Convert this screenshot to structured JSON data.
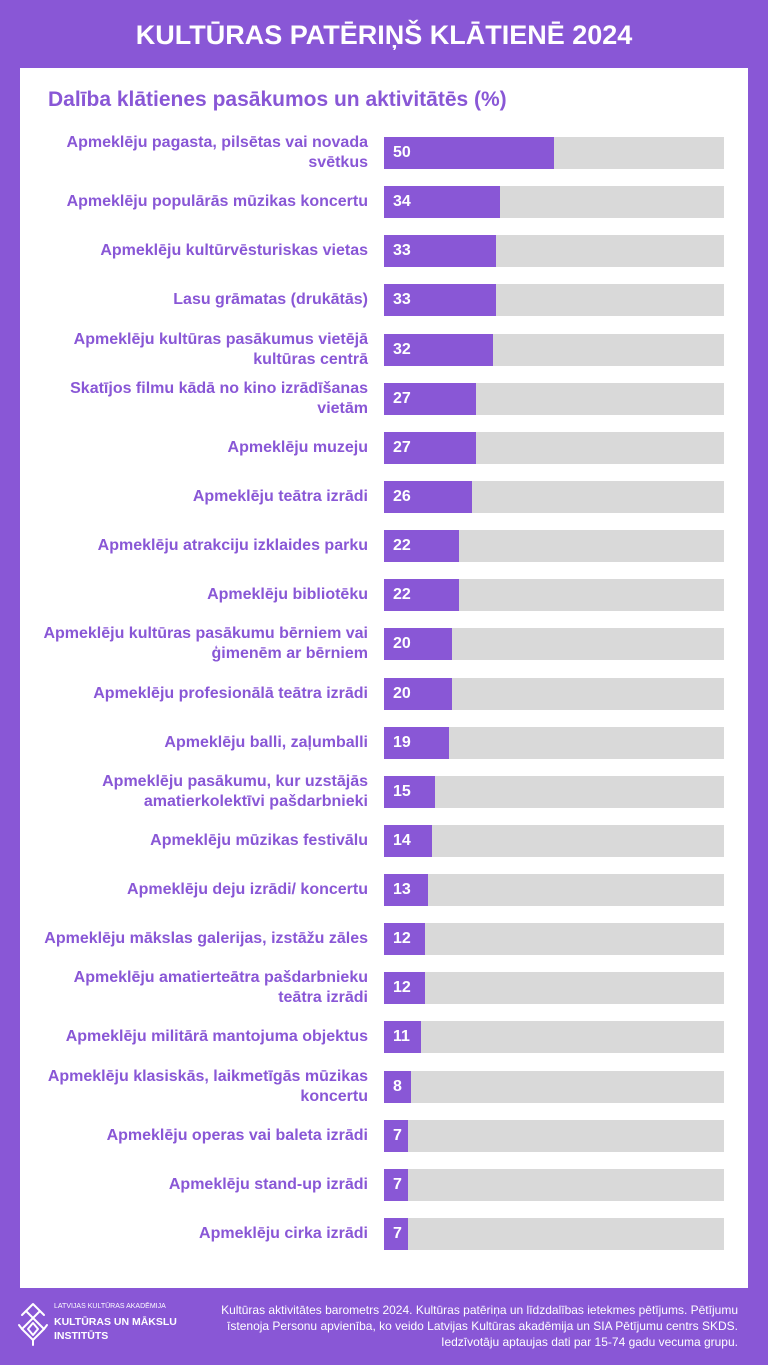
{
  "title": "KULTŪRAS PATĒRIŅŠ KLĀTIENĒ 2024",
  "colors": {
    "accent": "#8957d6",
    "track": "#d9d9d9",
    "panel": "#ffffff",
    "on_accent": "#ffffff"
  },
  "chart_data": {
    "type": "bar",
    "orientation": "horizontal",
    "title": "Dalība klātienes pasākumos un aktivitātēs (%)",
    "xlabel": "",
    "ylabel": "",
    "xlim": [
      0,
      100
    ],
    "grid": false,
    "categories": [
      "Apmeklēju pagasta, pilsētas vai novada svētkus",
      "Apmeklēju populārās mūzikas koncertu",
      "Apmeklēju kultūrvēsturiskas vietas",
      "Lasu grāmatas (drukātās)",
      "Apmeklēju kultūras pasākumus vietējā kultūras centrā",
      "Skatījos filmu kādā no kino izrādīšanas vietām",
      "Apmeklēju muzeju",
      "Apmeklēju teātra izrādi",
      "Apmeklēju atrakciju izklaides parku",
      "Apmeklēju bibliotēku",
      "Apmeklēju kultūras pasākumu bērniem vai ģimenēm ar bērniem",
      "Apmeklēju profesionālā teātra izrādi",
      "Apmeklēju balli, zaļumballi",
      "Apmeklēju pasākumu, kur uzstājās amatierkolektīvi pašdarbnieki",
      "Apmeklēju mūzikas festivālu",
      "Apmeklēju deju izrādi/ koncertu",
      "Apmeklēju mākslas galerijas, izstāžu zāles",
      "Apmeklēju amatierteātra pašdarbnieku teātra izrādi",
      "Apmeklēju militārā mantojuma objektus",
      "Apmeklēju klasiskās, laikmetīgās mūzikas koncertu",
      "Apmeklēju operas vai baleta izrādi",
      "Apmeklēju stand-up izrādi",
      "Apmeklēju cirka izrādi"
    ],
    "values": [
      50,
      34,
      33,
      33,
      32,
      27,
      27,
      26,
      22,
      22,
      20,
      20,
      19,
      15,
      14,
      13,
      12,
      12,
      11,
      8,
      7,
      7,
      7
    ]
  },
  "footer": {
    "logo": {
      "line1": "LATVIJAS KULTŪRAS AKADĒMIJA",
      "line2": "KULTŪRAS UN MĀKSLU",
      "line3": "INSTITŪTS",
      "icon": "academy-logo-icon"
    },
    "source_lines": [
      "Kultūras aktivitātes barometrs 2024. Kultūras patēriņa un līdzdalības ietekmes pētījums. Pētījumu",
      "īstenoja Personu apvienība, ko veido Latvijas Kultūras akadēmija un SIA Pētījumu centrs SKDS.",
      "Iedzīvotāju aptaujas dati par 15-74 gadu vecuma grupu."
    ]
  }
}
